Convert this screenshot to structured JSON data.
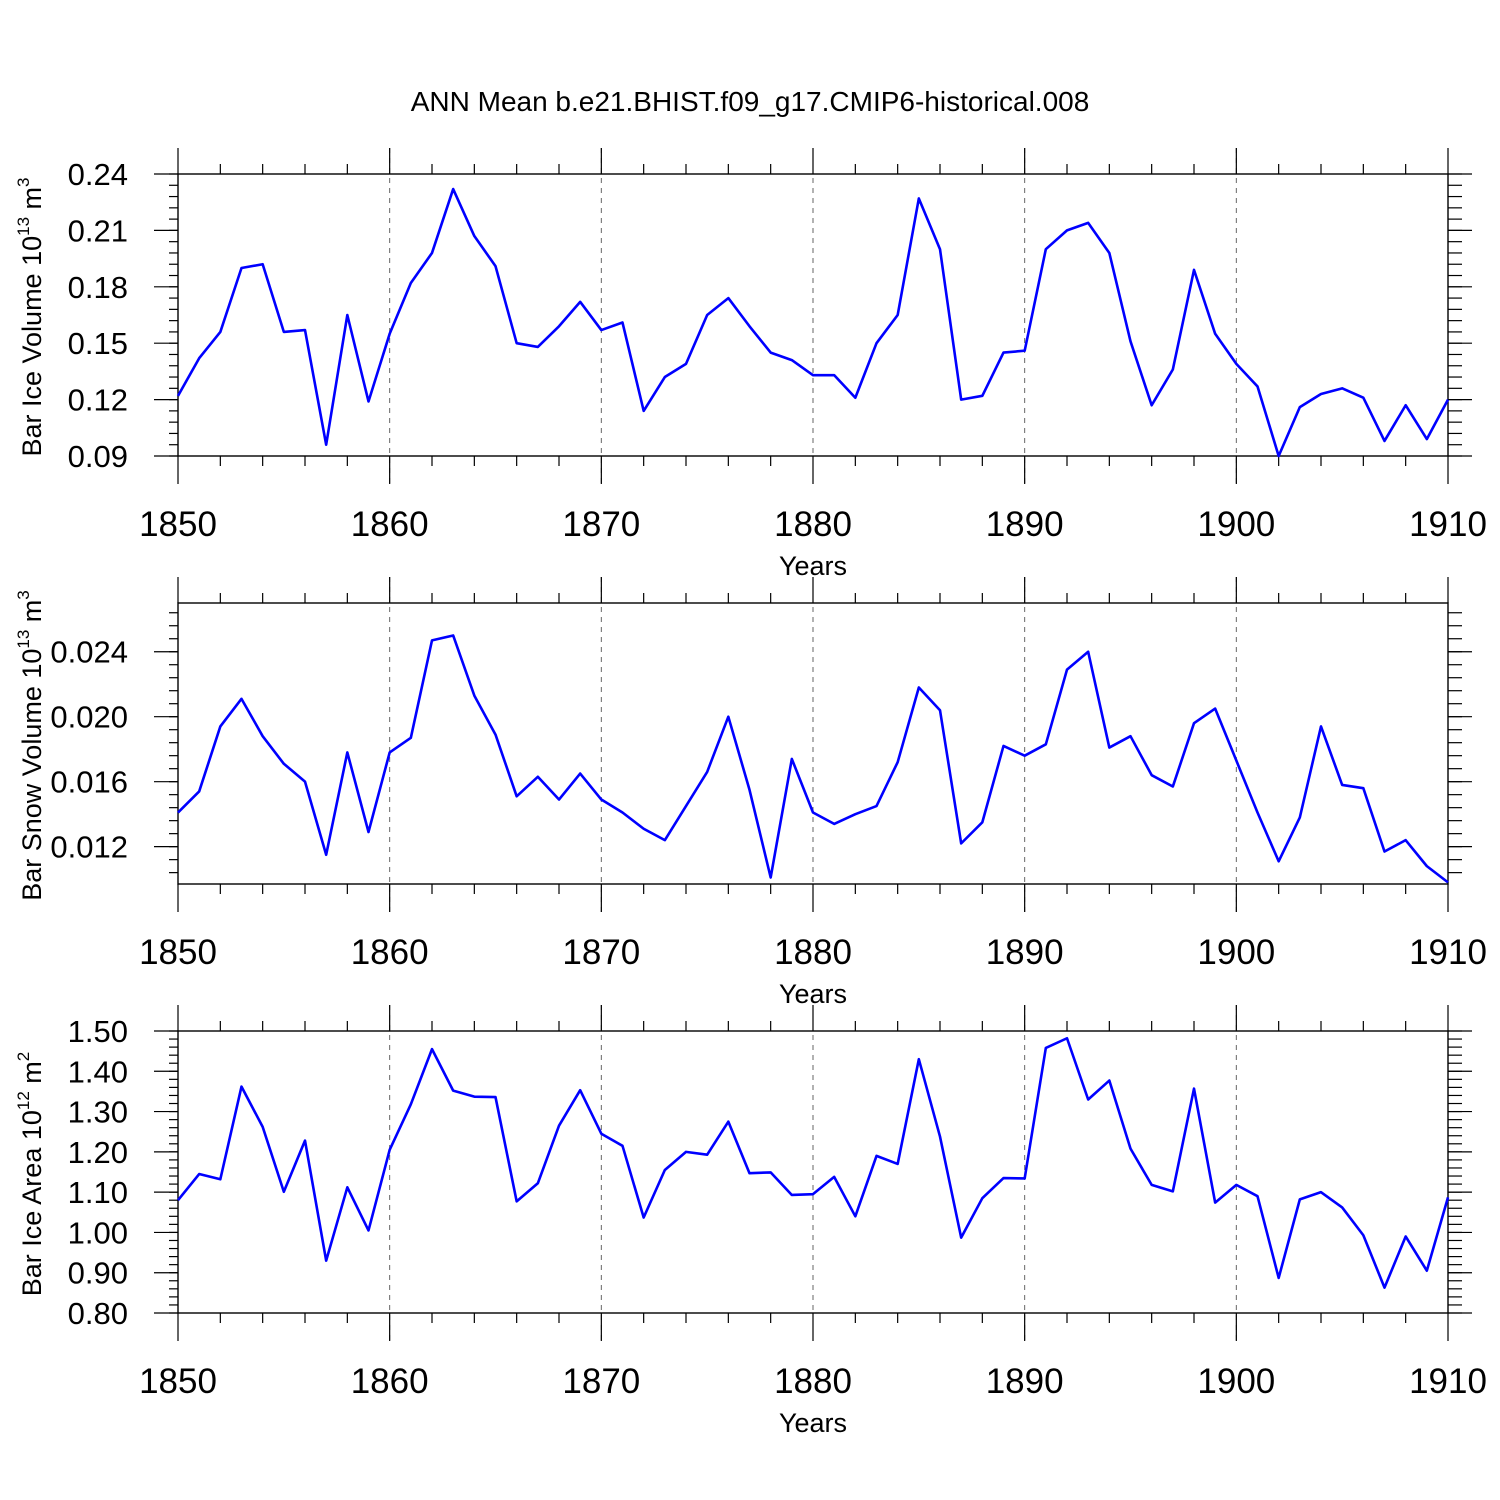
{
  "title": "ANN Mean b.e21.BHIST.f09_g17.CMIP6-historical.008",
  "line_color": "#0000ff",
  "chart_data": [
    {
      "type": "line",
      "ylabel": "Bar Ice Volume 10",
      "ylabel_exp": "13",
      "ylabel_unit": " m",
      "ylabel_unit_exp": "3",
      "xlabel": "Years",
      "xlim": [
        1850,
        1910
      ],
      "ylim": [
        0.09,
        0.24
      ],
      "xticks": [
        1850,
        1860,
        1870,
        1880,
        1890,
        1900,
        1910
      ],
      "xtick_labels": [
        "1850",
        "1860",
        "1870",
        "1880",
        "1890",
        "1900",
        "1910"
      ],
      "yticks": [
        0.09,
        0.12,
        0.15,
        0.18,
        0.21,
        0.24
      ],
      "ytick_labels": [
        "0.09",
        "0.12",
        "0.15",
        "0.18",
        "0.21",
        "0.24"
      ],
      "yminor_step": 0.006,
      "grid_x": true,
      "x_start": 1850,
      "values": [
        0.122,
        0.142,
        0.156,
        0.19,
        0.192,
        0.156,
        0.157,
        0.096,
        0.165,
        0.119,
        0.155,
        0.182,
        0.198,
        0.232,
        0.207,
        0.191,
        0.15,
        0.148,
        0.159,
        0.172,
        0.157,
        0.161,
        0.114,
        0.132,
        0.139,
        0.165,
        0.174,
        0.159,
        0.145,
        0.141,
        0.133,
        0.133,
        0.121,
        0.15,
        0.165,
        0.227,
        0.2,
        0.12,
        0.122,
        0.145,
        0.146,
        0.2,
        0.21,
        0.214,
        0.198,
        0.151,
        0.117,
        0.136,
        0.189,
        0.155,
        0.139,
        0.127,
        0.09,
        0.116,
        0.123,
        0.126,
        0.121,
        0.098,
        0.117,
        0.099,
        0.12
      ]
    },
    {
      "type": "line",
      "ylabel": "Bar Snow Volume 10",
      "ylabel_exp": "13",
      "ylabel_unit": " m",
      "ylabel_unit_exp": "3",
      "xlabel": "Years",
      "xlim": [
        1850,
        1910
      ],
      "ylim": [
        0.0097,
        0.027
      ],
      "xticks": [
        1850,
        1860,
        1870,
        1880,
        1890,
        1900,
        1910
      ],
      "xtick_labels": [
        "1850",
        "1860",
        "1870",
        "1880",
        "1890",
        "1900",
        "1910"
      ],
      "yticks": [
        0.012,
        0.016,
        0.02,
        0.024
      ],
      "ytick_labels": [
        "0.012",
        "0.016",
        "0.020",
        "0.024"
      ],
      "yminor_step": 0.0008,
      "grid_x": true,
      "x_start": 1850,
      "values": [
        0.0141,
        0.0154,
        0.0194,
        0.0211,
        0.0188,
        0.0171,
        0.016,
        0.0115,
        0.0178,
        0.0129,
        0.0178,
        0.0187,
        0.0247,
        0.025,
        0.0213,
        0.0189,
        0.0151,
        0.0163,
        0.0149,
        0.0165,
        0.0149,
        0.0141,
        0.0131,
        0.0124,
        0.0145,
        0.0166,
        0.02,
        0.0155,
        0.0101,
        0.0174,
        0.0141,
        0.0134,
        0.014,
        0.0145,
        0.0172,
        0.0218,
        0.0204,
        0.0122,
        0.0135,
        0.0182,
        0.0176,
        0.0183,
        0.0229,
        0.024,
        0.0181,
        0.0188,
        0.0164,
        0.0157,
        0.0196,
        0.0205,
        0.0173,
        0.0141,
        0.0111,
        0.0138,
        0.0194,
        0.0158,
        0.0156,
        0.0117,
        0.0124,
        0.0108,
        0.0098
      ]
    },
    {
      "type": "line",
      "ylabel": "Bar Ice Area 10",
      "ylabel_exp": "12",
      "ylabel_unit": " m",
      "ylabel_unit_exp": "2",
      "xlabel": "Years",
      "xlim": [
        1850,
        1910
      ],
      "ylim": [
        0.8,
        1.5
      ],
      "xticks": [
        1850,
        1860,
        1870,
        1880,
        1890,
        1900,
        1910
      ],
      "xtick_labels": [
        "1850",
        "1860",
        "1870",
        "1880",
        "1890",
        "1900",
        "1910"
      ],
      "yticks": [
        0.8,
        0.9,
        1.0,
        1.1,
        1.2,
        1.3,
        1.4,
        1.5
      ],
      "ytick_labels": [
        "0.80",
        "0.90",
        "1.00",
        "1.10",
        "1.20",
        "1.30",
        "1.40",
        "1.50"
      ],
      "yminor_step": 0.02,
      "grid_x": true,
      "x_start": 1850,
      "values": [
        1.08,
        1.145,
        1.132,
        1.362,
        1.262,
        1.101,
        1.228,
        0.93,
        1.112,
        1.005,
        1.205,
        1.318,
        1.455,
        1.352,
        1.337,
        1.336,
        1.077,
        1.122,
        1.265,
        1.353,
        1.245,
        1.215,
        1.037,
        1.155,
        1.2,
        1.193,
        1.275,
        1.147,
        1.149,
        1.093,
        1.095,
        1.138,
        1.04,
        1.19,
        1.17,
        1.43,
        1.238,
        0.987,
        1.085,
        1.135,
        1.134,
        1.458,
        1.482,
        1.33,
        1.377,
        1.208,
        1.118,
        1.102,
        1.357,
        1.074,
        1.118,
        1.09,
        0.887,
        1.082,
        1.1,
        1.062,
        0.993,
        0.863,
        0.99,
        0.905,
        1.087
      ]
    }
  ]
}
